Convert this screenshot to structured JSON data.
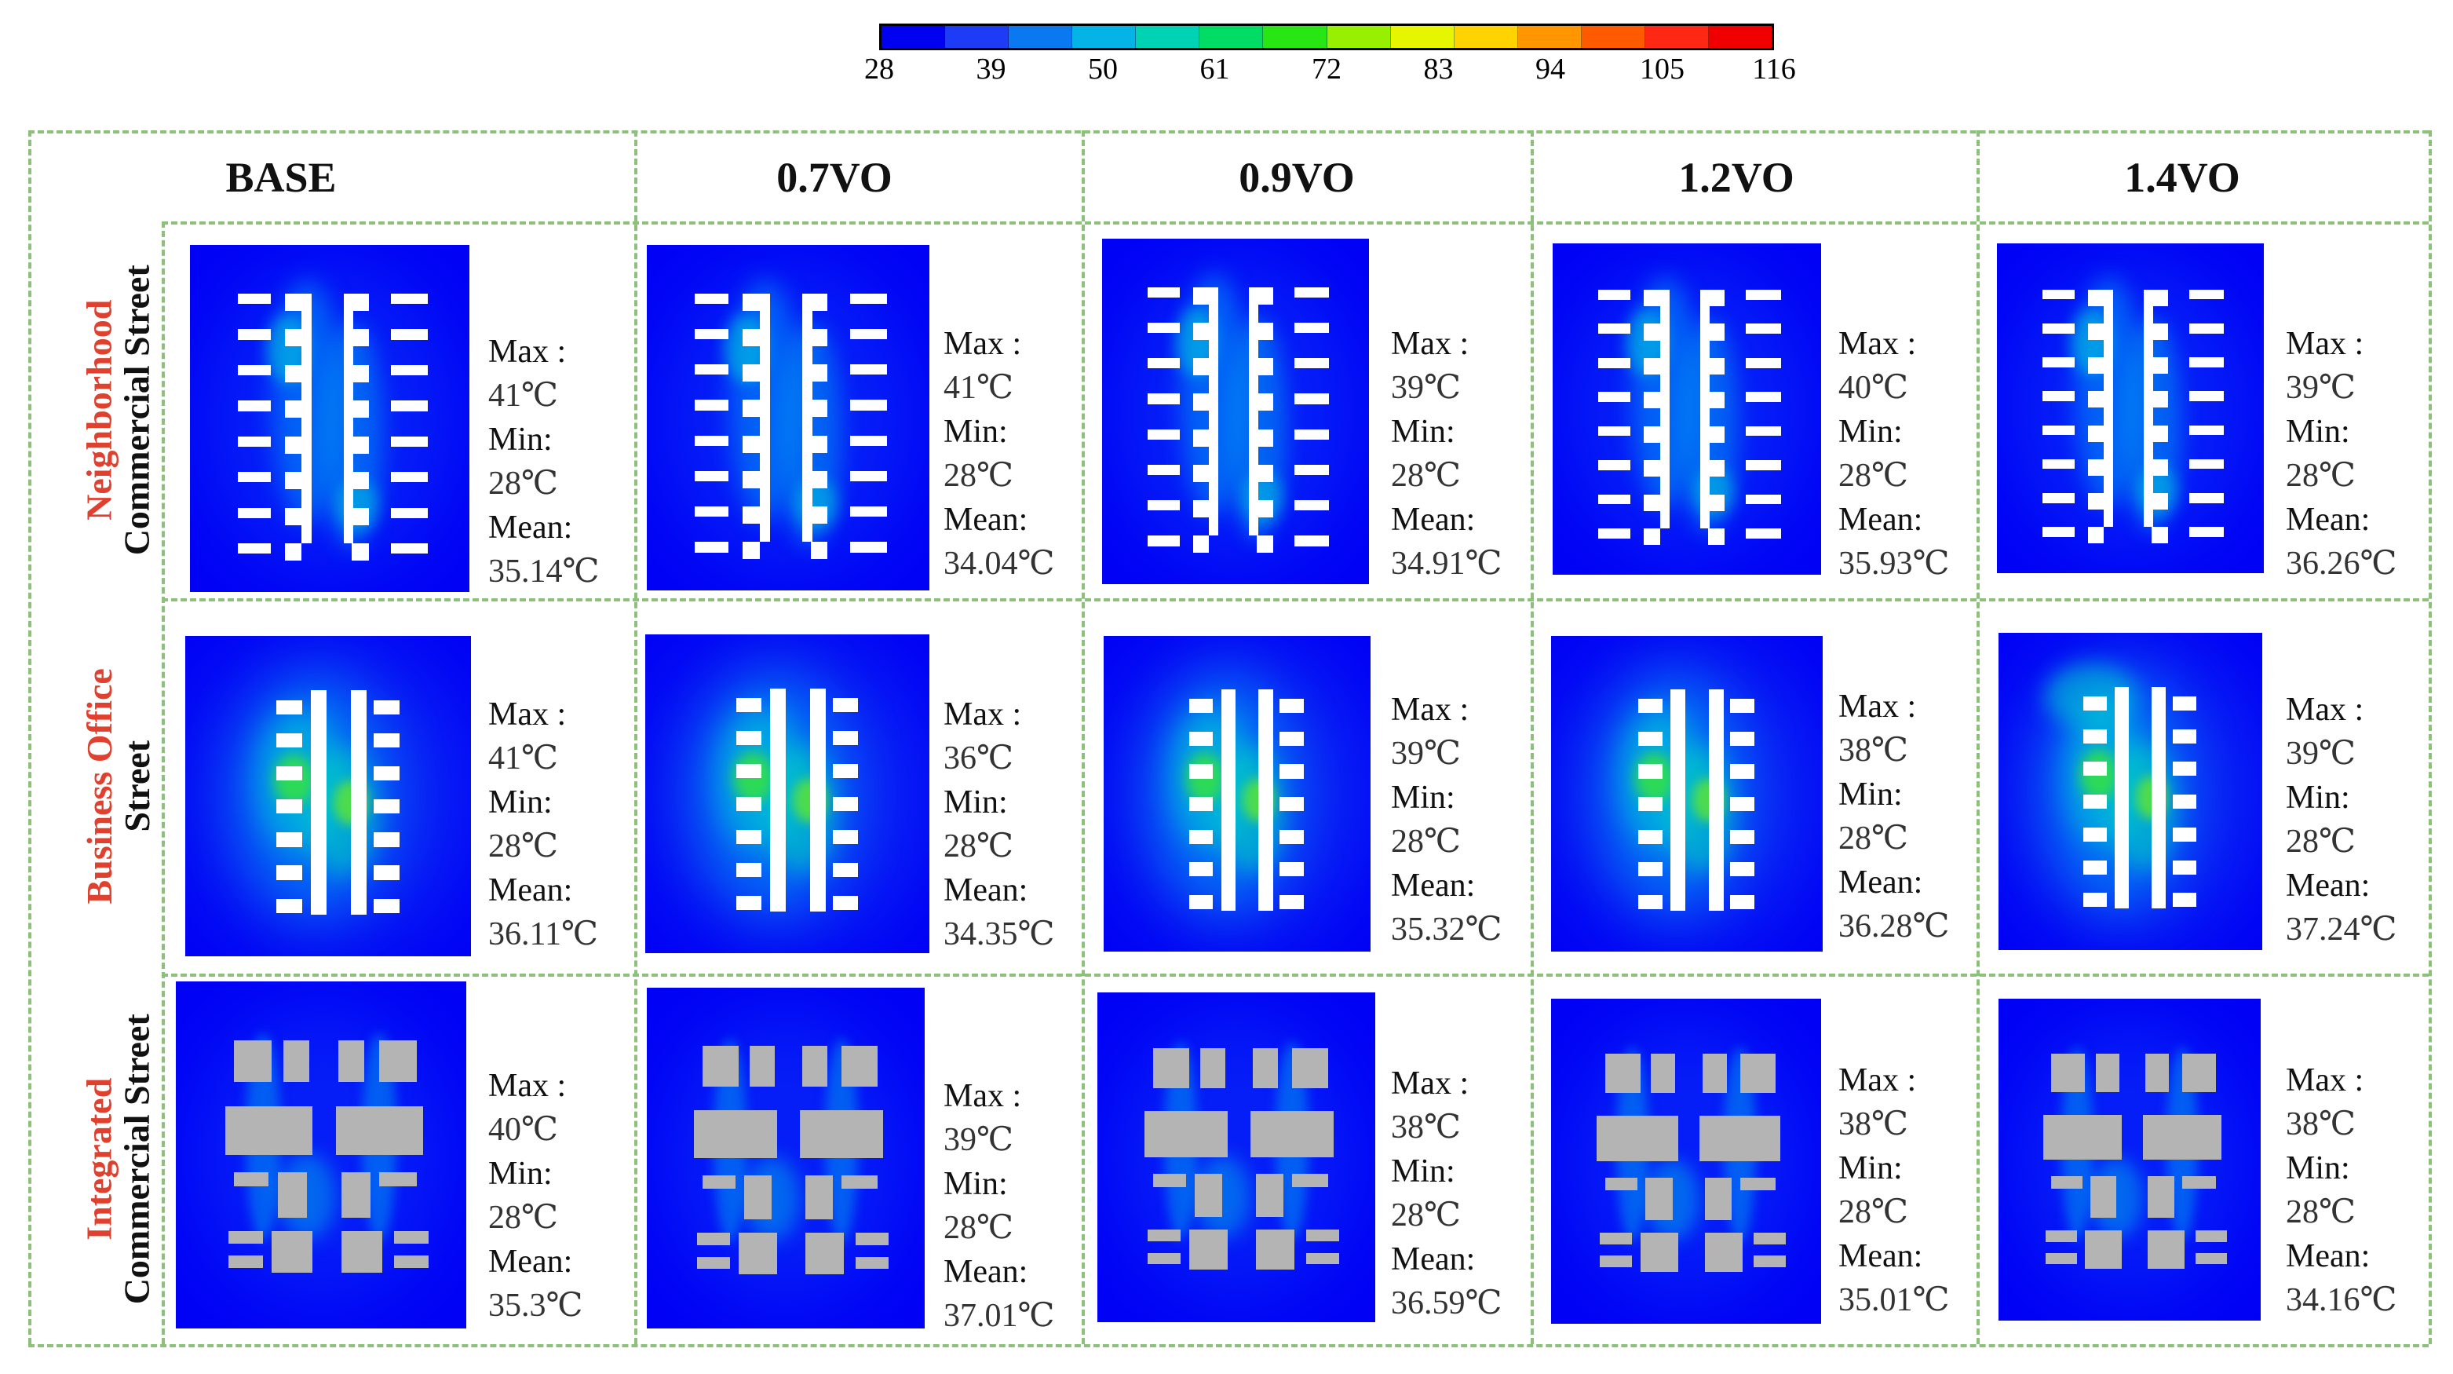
{
  "colorbar": {
    "ticks": [
      "28",
      "39",
      "50",
      "61",
      "72",
      "83",
      "94",
      "105",
      "116"
    ],
    "colors": [
      "#0000f0",
      "#1e3cf5",
      "#0a78f0",
      "#05b4e6",
      "#00d2b4",
      "#00dc64",
      "#28e614",
      "#96f000",
      "#e6f500",
      "#ffd200",
      "#ff9600",
      "#ff5a00",
      "#ff2814",
      "#f00000"
    ]
  },
  "columns": [
    "BASE",
    "0.7VO",
    "0.9VO",
    "1.2VO",
    "1.4VO"
  ],
  "rows": [
    {
      "id": "neighborhood",
      "line1": "Neighborhood",
      "line2": "Commercial Street"
    },
    {
      "id": "business",
      "line1": "Business Office",
      "line2": "Street"
    },
    {
      "id": "integrated",
      "line1": "Integrated",
      "line2": "Commercial Street"
    }
  ],
  "labels": {
    "max": "Max :",
    "min": "Min:",
    "mean": "Mean:"
  },
  "stats": [
    [
      {
        "max": "41℃",
        "min": "28℃",
        "mean": "35.14℃"
      },
      {
        "max": "41℃",
        "min": "28℃",
        "mean": "34.04℃"
      },
      {
        "max": "39℃",
        "min": "28℃",
        "mean": "34.91℃"
      },
      {
        "max": "40℃",
        "min": "28℃",
        "mean": "35.93℃"
      },
      {
        "max": "39℃",
        "min": "28℃",
        "mean": "36.26℃"
      }
    ],
    [
      {
        "max": "41℃",
        "min": "28℃",
        "mean": "36.11℃"
      },
      {
        "max": "36℃",
        "min": "28℃",
        "mean": "34.35℃"
      },
      {
        "max": "39℃",
        "min": "28℃",
        "mean": "35.32℃"
      },
      {
        "max": "38℃",
        "min": "28℃",
        "mean": "36.28℃"
      },
      {
        "max": "39℃",
        "min": "28℃",
        "mean": "37.24℃"
      }
    ],
    [
      {
        "max": "40℃",
        "min": "28℃",
        "mean": "35.3℃"
      },
      {
        "max": "39℃",
        "min": "28℃",
        "mean": "37.01℃"
      },
      {
        "max": "38℃",
        "min": "28℃",
        "mean": "36.59℃"
      },
      {
        "max": "38℃",
        "min": "28℃",
        "mean": "35.01℃"
      },
      {
        "max": "38℃",
        "min": "28℃",
        "mean": "34.16℃"
      }
    ]
  ]
}
